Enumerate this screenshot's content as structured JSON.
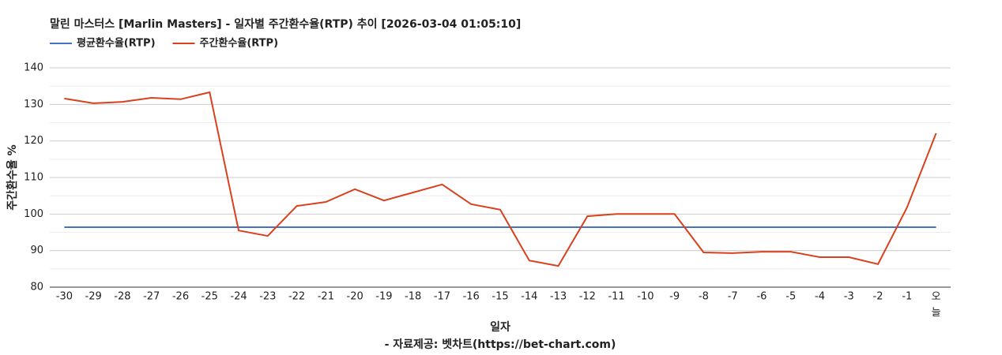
{
  "chart_data": {
    "type": "line",
    "title": "말린 마스터스 [Marlin Masters] - 일자별 주간환수율(RTP) 추이 [2026-03-04 01:05:10]",
    "x_label": "일자",
    "y_label": "주간환수율 %",
    "source": "- 자료제공: 벳차트(https://bet-chart.com)",
    "categories": [
      "-30",
      "-29",
      "-28",
      "-27",
      "-26",
      "-25",
      "-24",
      "-23",
      "-22",
      "-21",
      "-20",
      "-19",
      "-18",
      "-17",
      "-16",
      "-15",
      "-14",
      "-13",
      "-12",
      "-11",
      "-10",
      "-9",
      "-8",
      "-7",
      "-6",
      "-5",
      "-4",
      "-3",
      "-2",
      "-1",
      "오늘"
    ],
    "series": [
      {
        "name": "평균환수율(RTP)",
        "color": "#4472c4",
        "values": [
          96.4,
          96.4,
          96.4,
          96.4,
          96.4,
          96.4,
          96.4,
          96.4,
          96.4,
          96.4,
          96.4,
          96.4,
          96.4,
          96.4,
          96.4,
          96.4,
          96.4,
          96.4,
          96.4,
          96.4,
          96.4,
          96.4,
          96.4,
          96.4,
          96.4,
          96.4,
          96.4,
          96.4,
          96.4,
          96.4,
          96.4
        ]
      },
      {
        "name": "주간환수율(RTP)",
        "color": "#d9411e",
        "values": [
          131.6,
          130.3,
          130.7,
          131.8,
          131.4,
          133.3,
          95.5,
          94.0,
          102.2,
          103.3,
          106.8,
          103.7,
          105.9,
          108.1,
          102.7,
          101.2,
          87.3,
          85.8,
          99.4,
          100.0,
          100.0,
          100.0,
          89.5,
          89.3,
          89.7,
          89.7,
          88.2,
          88.2,
          86.3,
          101.8,
          122.1
        ]
      }
    ],
    "ylim": [
      80,
      140
    ],
    "yticks": [
      80,
      90,
      100,
      110,
      120,
      130,
      140
    ],
    "minor_yticks": [
      85,
      95,
      105,
      115,
      125,
      135
    ],
    "grid": true,
    "legend": "top-left"
  }
}
